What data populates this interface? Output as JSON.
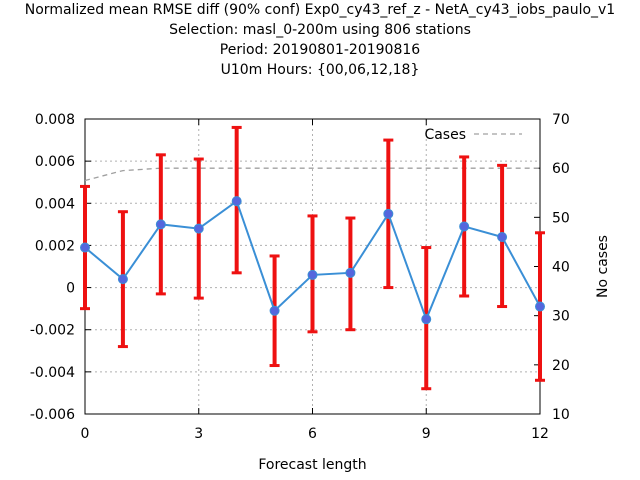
{
  "title_lines": [
    "Normalized mean RMSE diff (90% conf) Exp0_cy43_ref_z - NetA_cy43_iobs_paulo_v1",
    "Selection: masl_0-200m using   806 stations",
    "Period: 20190801-20190816",
    "U10m   Hours: {00,06,12,18}"
  ],
  "chart_data": {
    "type": "line",
    "title": "Normalized mean RMSE diff (90% conf) Exp0_cy43_ref_z - NetA_cy43_iobs_paulo_v1",
    "xlabel": "Forecast length",
    "ylabel": "",
    "y2label": "No cases",
    "xlim": [
      0,
      12
    ],
    "ylim": [
      -0.006,
      0.008
    ],
    "y2lim": [
      10,
      70
    ],
    "xticks": [
      0,
      3,
      6,
      9,
      12
    ],
    "yticks": [
      -0.006,
      -0.004,
      -0.002,
      0,
      0.002,
      0.004,
      0.006,
      0.008
    ],
    "yticklabels": [
      "-0.006",
      "-0.004",
      "-0.002",
      "0",
      "0.002",
      "0.004",
      "0.006",
      "0.008"
    ],
    "y2ticks": [
      10,
      20,
      30,
      40,
      50,
      60,
      70
    ],
    "grid": true,
    "legend_position": "top-right",
    "series": [
      {
        "name": "",
        "axis": "left",
        "color": "#3a8fd6",
        "marker_color": "#5566dd",
        "x": [
          0,
          1,
          2,
          3,
          4,
          5,
          6,
          7,
          8,
          9,
          10,
          11,
          12
        ],
        "values": [
          0.0019,
          0.0004,
          0.003,
          0.0028,
          0.0041,
          -0.0011,
          0.0006,
          0.0007,
          0.0035,
          -0.0015,
          0.0029,
          0.0024,
          -0.0009
        ],
        "error_low": [
          -0.001,
          -0.0028,
          -0.0003,
          -0.0005,
          0.0007,
          -0.0037,
          -0.0021,
          -0.002,
          0.0,
          -0.0048,
          -0.0004,
          -0.0009,
          -0.0044
        ],
        "error_high": [
          0.0048,
          0.0036,
          0.0063,
          0.0061,
          0.0076,
          0.0015,
          0.0034,
          0.0033,
          0.007,
          0.0019,
          0.0062,
          0.0058,
          0.0026
        ],
        "error_color": "#ee1111"
      },
      {
        "name": "Cases",
        "axis": "right",
        "color": "#a0a0a0",
        "dash": true,
        "x": [
          0,
          1,
          2,
          3,
          4,
          5,
          6,
          7,
          8,
          9,
          10,
          11,
          12
        ],
        "values": [
          57.5,
          59.5,
          60,
          60,
          60,
          60,
          60,
          60,
          60,
          60,
          60,
          60,
          60
        ]
      }
    ]
  }
}
